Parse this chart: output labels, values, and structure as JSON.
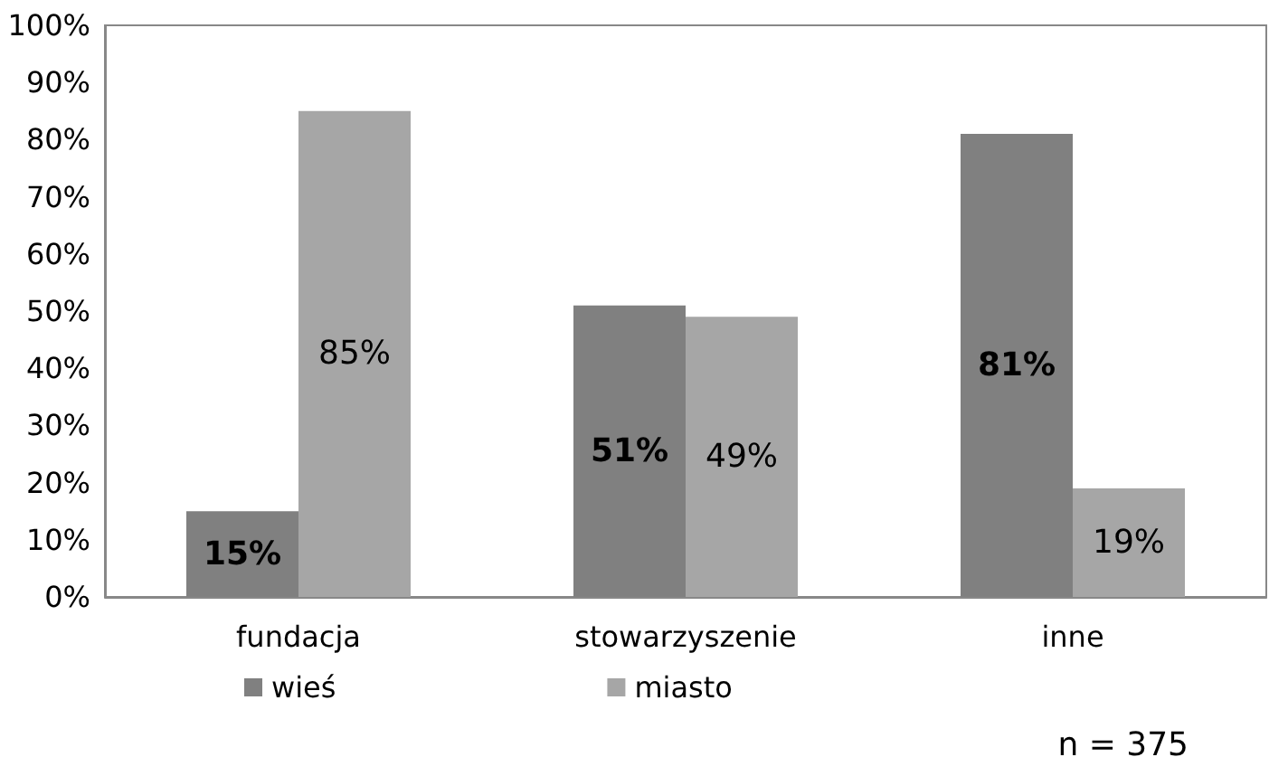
{
  "chart_data": {
    "type": "bar",
    "categories": [
      "fundacja",
      "stowarzyszenie",
      "inne"
    ],
    "series": [
      {
        "name": "wieś",
        "color": "#808080",
        "values": [
          15,
          51,
          81
        ],
        "value_labels": [
          "15%",
          "51%",
          "81%"
        ]
      },
      {
        "name": "miasto",
        "color": "#a6a6a6",
        "values": [
          85,
          49,
          19
        ],
        "value_labels": [
          "85%",
          "49%",
          "19%"
        ]
      }
    ],
    "ylim": [
      0,
      100
    ],
    "yticks": [
      {
        "value": 0,
        "label": "0%"
      },
      {
        "value": 10,
        "label": "10%"
      },
      {
        "value": 20,
        "label": "20%"
      },
      {
        "value": 30,
        "label": "30%"
      },
      {
        "value": 40,
        "label": "40%"
      },
      {
        "value": 50,
        "label": "50%"
      },
      {
        "value": 60,
        "label": "60%"
      },
      {
        "value": 70,
        "label": "70%"
      },
      {
        "value": 80,
        "label": "80%"
      },
      {
        "value": 90,
        "label": "90%"
      },
      {
        "value": 100,
        "label": "100%"
      }
    ],
    "grid": false,
    "legend": "bottom left",
    "annotations": [
      "n = 375"
    ]
  }
}
